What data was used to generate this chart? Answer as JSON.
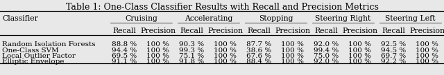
{
  "title": "Table 1: One-Class Classifier Results with Recall and Precision Metrics",
  "col_groups": [
    "Cruising",
    "Accelerating",
    "Stopping",
    "Steering Right",
    "Steering Left"
  ],
  "sub_headers": [
    "Recall",
    "Precision",
    "Recall",
    "Precision",
    "Recall",
    "Precision",
    "Recall",
    "Precision",
    "Recall",
    "Precision"
  ],
  "row_labels": [
    "Random Isolation Forests",
    "One-Class SVM",
    "Local Outlier Factor",
    "Elliptic Envelope"
  ],
  "data": [
    [
      "88.8 %",
      "100 %",
      "90.3 %",
      "100 %",
      "87.7 %",
      "100 %",
      "92.0 %",
      "100 %",
      "92.5 %",
      "100 %"
    ],
    [
      "94.4 %",
      "100 %",
      "99.3 %",
      "100 %",
      "38.6 %",
      "100 %",
      "99.4 %",
      "100 %",
      "94.5 %",
      "100 %"
    ],
    [
      "69.5 %",
      "100 %",
      "75.1 %",
      "100 %",
      "67.6 %",
      "100 %",
      "75.0 %",
      "100 %",
      "69.7 %",
      "100 %"
    ],
    [
      "91.1 %",
      "100 %",
      "91.8 %",
      "100 %",
      "88.4 %",
      "100 %",
      "92.0 %",
      "100 %",
      "92.2 %",
      "100 %"
    ]
  ],
  "bg_color": "#e8e8e8",
  "title_fontsize": 9.0,
  "header_fontsize": 7.8,
  "data_fontsize": 7.5,
  "fig_width": 6.4,
  "fig_height": 1.09,
  "dpi": 100
}
